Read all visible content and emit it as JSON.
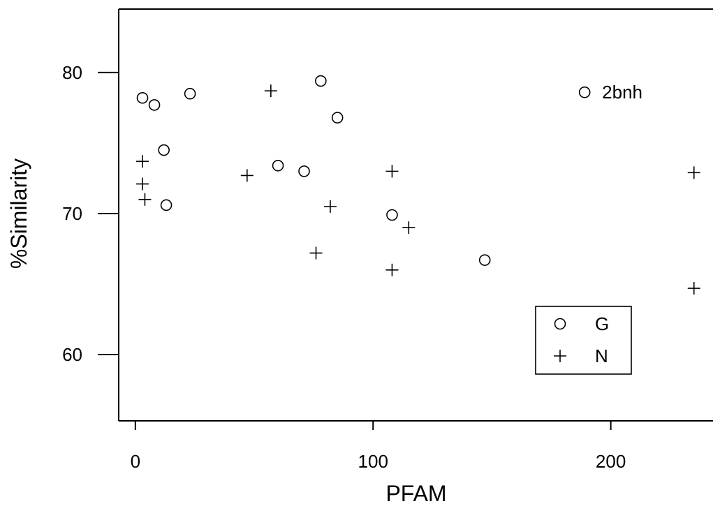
{
  "chart_data": {
    "type": "scatter",
    "xlabel": "PFAM",
    "ylabel": "%Similarity",
    "xlim": [
      -7,
      243
    ],
    "ylim": [
      55.3,
      84.5
    ],
    "xticks": [
      0,
      100,
      200
    ],
    "yticks": [
      60,
      70,
      80
    ],
    "xtick_labels": [
      "0",
      "100",
      "200"
    ],
    "ytick_labels": [
      "60",
      "70",
      "80"
    ],
    "grid": false,
    "legend_position": "bottom-right",
    "series": [
      {
        "name": "G",
        "marker": "circle",
        "points": [
          {
            "x": 3,
            "y": 78.2
          },
          {
            "x": 8,
            "y": 77.7
          },
          {
            "x": 12,
            "y": 74.5
          },
          {
            "x": 13,
            "y": 70.6
          },
          {
            "x": 23,
            "y": 78.5
          },
          {
            "x": 60,
            "y": 73.4
          },
          {
            "x": 71,
            "y": 73.0
          },
          {
            "x": 78,
            "y": 79.4
          },
          {
            "x": 85,
            "y": 76.8
          },
          {
            "x": 108,
            "y": 69.9
          },
          {
            "x": 147,
            "y": 66.7
          }
        ]
      },
      {
        "name": "N",
        "marker": "plus",
        "points": [
          {
            "x": 3,
            "y": 73.7
          },
          {
            "x": 3,
            "y": 72.1
          },
          {
            "x": 4,
            "y": 71.0
          },
          {
            "x": 47,
            "y": 72.7
          },
          {
            "x": 57,
            "y": 78.7
          },
          {
            "x": 76,
            "y": 67.2
          },
          {
            "x": 82,
            "y": 70.5
          },
          {
            "x": 108,
            "y": 73.0
          },
          {
            "x": 108,
            "y": 66.0
          },
          {
            "x": 115,
            "y": 69.0
          },
          {
            "x": 235,
            "y": 72.9
          },
          {
            "x": 235,
            "y": 64.7
          }
        ]
      }
    ],
    "annotations": [
      {
        "text": "2bnh",
        "marker": "circle",
        "x": 189,
        "y": 78.6
      }
    ]
  }
}
